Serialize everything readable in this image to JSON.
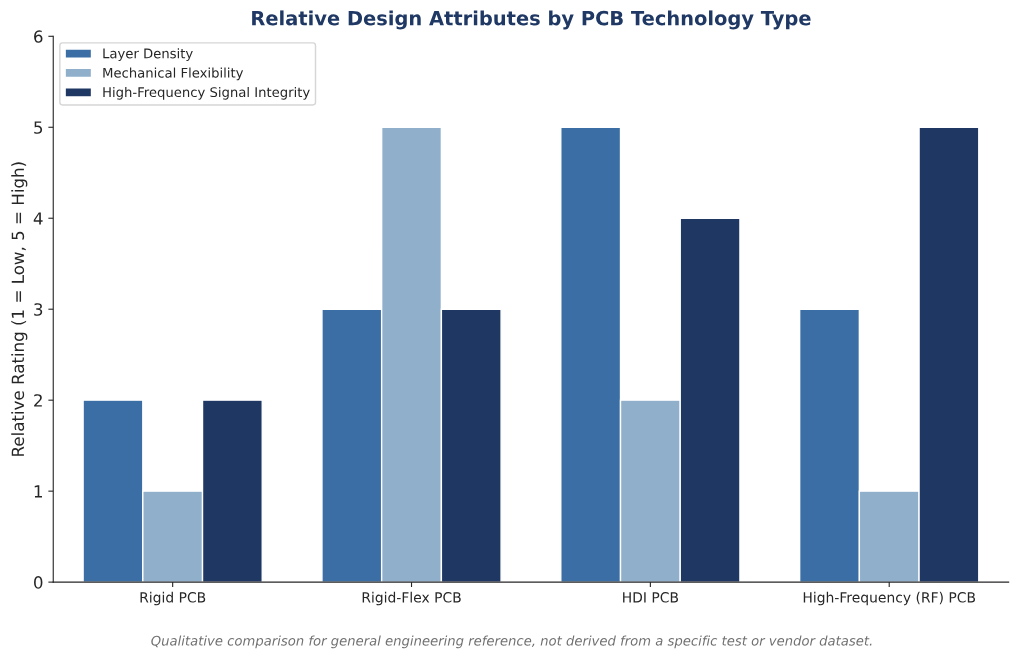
{
  "chart_data": {
    "type": "bar",
    "title": "Relative Design Attributes by PCB Technology Type",
    "ylabel": "Relative Rating (1 = Low, 5 = High)",
    "categories": [
      "Rigid PCB",
      "Rigid-Flex PCB",
      "HDI PCB",
      "High-Frequency (RF) PCB"
    ],
    "series": [
      {
        "name": "Layer Density",
        "color": "#3a6ea5",
        "values": [
          2,
          3,
          5,
          3
        ]
      },
      {
        "name": "Mechanical Flexibility",
        "color": "#8fafcb",
        "values": [
          1,
          5,
          2,
          1
        ]
      },
      {
        "name": "High-Frequency Signal Integrity",
        "color": "#1f3763",
        "values": [
          2,
          3,
          4,
          5
        ]
      }
    ],
    "ylim": [
      0,
      6
    ],
    "yticks": [
      0,
      1,
      2,
      3,
      4,
      5,
      6
    ],
    "grid": false,
    "legend": "top left",
    "annotations": [
      "Qualitative comparison for general engineering reference, not derived from a specific test or vendor dataset."
    ]
  }
}
